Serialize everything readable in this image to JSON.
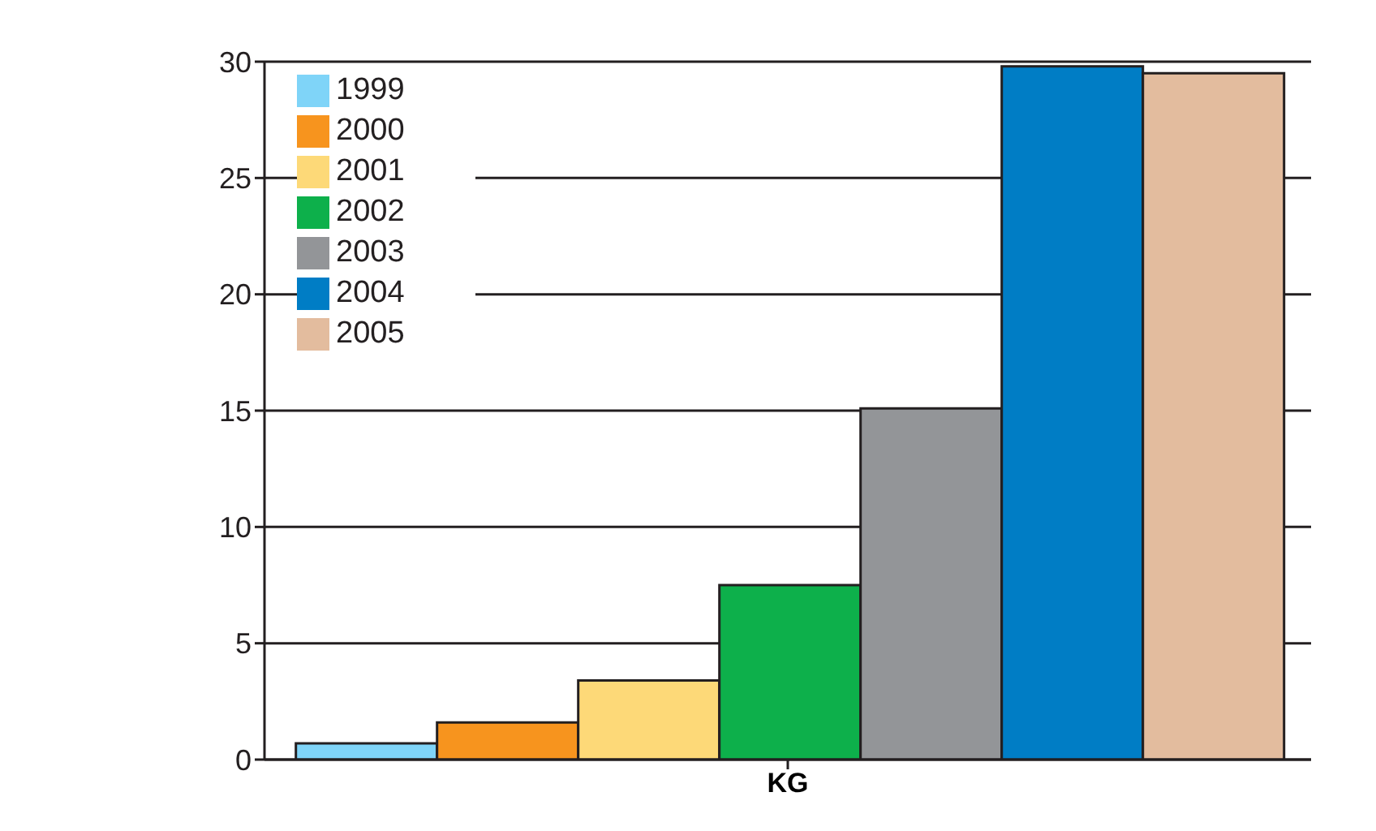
{
  "chart_data": {
    "type": "bar",
    "categories": [
      "KG"
    ],
    "series": [
      {
        "name": "1999",
        "color": "#7fd4f8",
        "values": [
          0.7
        ]
      },
      {
        "name": "2000",
        "color": "#f7941e",
        "values": [
          1.6
        ]
      },
      {
        "name": "2001",
        "color": "#fdd978",
        "values": [
          3.4
        ]
      },
      {
        "name": "2002",
        "color": "#0db04b",
        "values": [
          7.5
        ]
      },
      {
        "name": "2003",
        "color": "#939598",
        "values": [
          15.1
        ]
      },
      {
        "name": "2004",
        "color": "#007dc5",
        "values": [
          29.8
        ]
      },
      {
        "name": "2005",
        "color": "#e3bc9e",
        "values": [
          29.5
        ]
      }
    ],
    "ylim": [
      0,
      30
    ],
    "yticks": [
      0,
      5,
      10,
      15,
      20,
      25,
      30
    ],
    "grid": "y",
    "legend": "top left"
  }
}
